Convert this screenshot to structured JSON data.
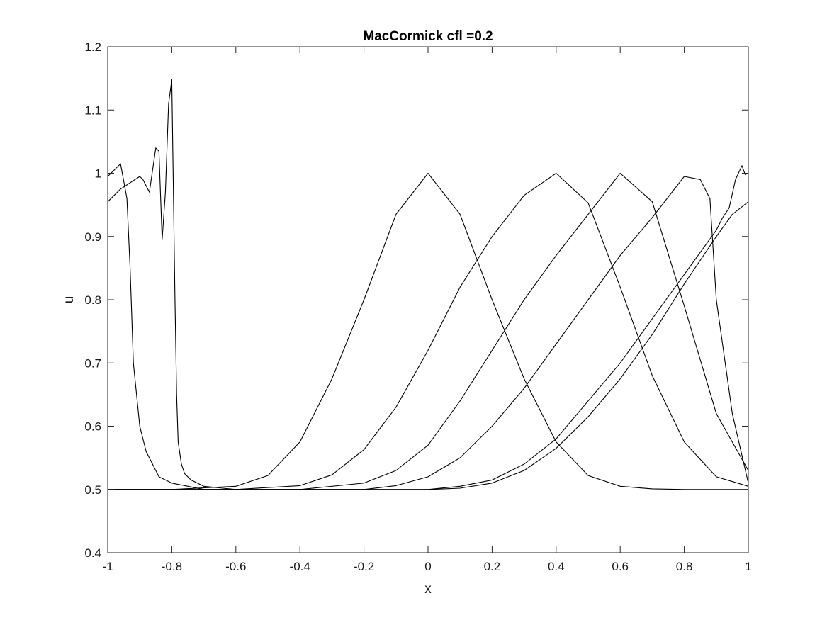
{
  "chart_data": {
    "type": "line",
    "title": "MacCormick cfl =0.2",
    "xlabel": "x",
    "ylabel": "u",
    "xlim": [
      -1,
      1
    ],
    "ylim": [
      0.4,
      1.2
    ],
    "xticks": [
      -1,
      -0.8,
      -0.6,
      -0.4,
      -0.2,
      0,
      0.2,
      0.4,
      0.6,
      0.8,
      1
    ],
    "xtick_labels": [
      "-1",
      "-0.8",
      "-0.6",
      "-0.4",
      "-0.2",
      "0",
      "0.2",
      "0.4",
      "0.6",
      "0.8",
      "1"
    ],
    "yticks": [
      0.4,
      0.5,
      0.6,
      0.7,
      0.8,
      0.9,
      1.0,
      1.1,
      1.2
    ],
    "ytick_labels": [
      "0.4",
      "0.5",
      "0.6",
      "0.7",
      "0.8",
      "0.9",
      "1",
      "1.1",
      "1.2"
    ],
    "grid": false,
    "line_color": "#000000",
    "series": [
      {
        "x": [
          -1,
          -0.8,
          -0.6,
          -0.5,
          -0.4,
          -0.3,
          -0.2,
          -0.1,
          0,
          0.1,
          0.2,
          0.3,
          0.4,
          0.5,
          0.6,
          0.7,
          0.8,
          1
        ],
        "y": [
          0.5,
          0.5,
          0.505,
          0.522,
          0.575,
          0.675,
          0.8,
          0.935,
          1.0,
          0.935,
          0.8,
          0.675,
          0.575,
          0.522,
          0.505,
          0.501,
          0.5,
          0.5
        ]
      },
      {
        "x": [
          -1,
          -0.6,
          -0.4,
          -0.3,
          -0.2,
          -0.1,
          0,
          0.1,
          0.2,
          0.3,
          0.4,
          0.5,
          0.6,
          0.7,
          0.8,
          0.9,
          1
        ],
        "y": [
          0.5,
          0.5,
          0.506,
          0.523,
          0.563,
          0.63,
          0.72,
          0.82,
          0.9,
          0.965,
          1.0,
          0.953,
          0.82,
          0.68,
          0.575,
          0.52,
          0.505
        ]
      },
      {
        "x": [
          -1,
          -0.4,
          -0.2,
          -0.1,
          0,
          0.1,
          0.2,
          0.3,
          0.4,
          0.5,
          0.6,
          0.7,
          0.8,
          0.9,
          1
        ],
        "y": [
          0.5,
          0.5,
          0.51,
          0.53,
          0.57,
          0.64,
          0.72,
          0.8,
          0.87,
          0.935,
          1.0,
          0.955,
          0.79,
          0.62,
          0.53
        ]
      },
      {
        "x": [
          -1,
          -0.2,
          -0.1,
          0,
          0.1,
          0.2,
          0.3,
          0.4,
          0.5,
          0.6,
          0.7,
          0.8,
          0.85,
          0.88,
          0.9,
          0.95,
          1
        ],
        "y": [
          0.5,
          0.5,
          0.506,
          0.52,
          0.55,
          0.6,
          0.66,
          0.73,
          0.8,
          0.87,
          0.93,
          0.995,
          0.99,
          0.96,
          0.8,
          0.62,
          0.51
        ]
      },
      {
        "x": [
          -1,
          -0.96,
          -0.94,
          -0.93,
          -0.92,
          -0.9,
          -0.88,
          -0.84,
          -0.8,
          -0.7,
          0,
          0.1,
          0.2,
          0.3,
          0.4,
          0.5,
          0.6,
          0.7,
          0.8,
          0.9,
          0.92,
          0.94,
          0.96,
          0.98,
          0.99,
          1
        ],
        "y": [
          0.995,
          1.015,
          0.96,
          0.85,
          0.7,
          0.6,
          0.56,
          0.52,
          0.51,
          0.5,
          0.5,
          0.505,
          0.515,
          0.54,
          0.58,
          0.64,
          0.7,
          0.77,
          0.84,
          0.91,
          0.93,
          0.945,
          0.99,
          1.012,
          0.998,
          1.0
        ]
      },
      {
        "x": [
          -1,
          -0.96,
          -0.9,
          -0.89,
          -0.87,
          -0.85,
          -0.84,
          -0.83,
          -0.82,
          -0.81,
          -0.8,
          -0.79,
          -0.785,
          -0.78,
          -0.77,
          -0.76,
          -0.74,
          -0.7,
          -0.6,
          0,
          0.1,
          0.2,
          0.3,
          0.4,
          0.5,
          0.6,
          0.7,
          0.8,
          0.9,
          0.95,
          1
        ],
        "y": [
          0.955,
          0.975,
          0.995,
          0.99,
          0.97,
          1.04,
          1.035,
          0.895,
          0.97,
          1.11,
          1.148,
          0.8,
          0.65,
          0.575,
          0.54,
          0.525,
          0.515,
          0.505,
          0.5,
          0.5,
          0.502,
          0.51,
          0.53,
          0.565,
          0.615,
          0.675,
          0.745,
          0.825,
          0.9,
          0.935,
          0.955
        ]
      }
    ]
  }
}
